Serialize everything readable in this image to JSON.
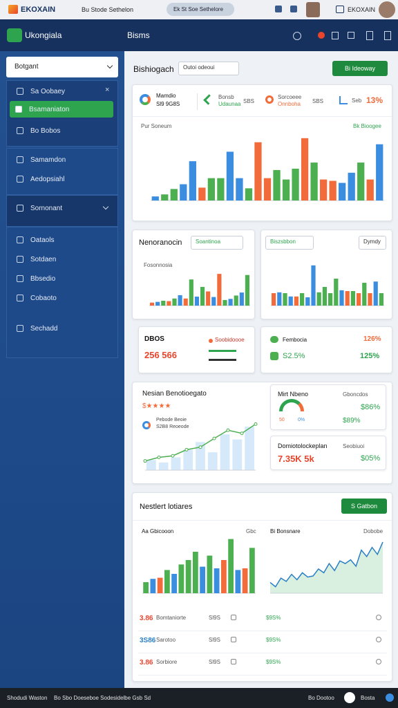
{
  "topbar": {
    "brand": "EKOXAIN",
    "menu": "Bu Stode Sethelon",
    "search": "Ek St Soe Sethelore"
  },
  "header": {
    "logo": "Ukongiala",
    "title": "Bisms"
  },
  "sidebar": {
    "select": "Botgant",
    "items": [
      "Sa Oobaey",
      "Bsamaniaton",
      "Bo Bobos",
      "Samamdon",
      "Aedopsiahl",
      "Sornonant",
      "Oataols",
      "Sotdaen",
      "Bbsedio",
      "Cobaoto",
      "Sechadd"
    ]
  },
  "toolbar": {
    "title": "Bishiogach",
    "dropdown": "Outoi odeoui",
    "button": "Bi Ideoway"
  },
  "overview": {
    "stats": [
      [
        "Mamdio",
        "Sl9 9G8S"
      ],
      [
        "Bonsb",
        "Udaunaa",
        "SBS"
      ],
      [
        "Sorcoeee",
        "Onnboha",
        "SBS"
      ],
      [
        "Seb",
        "13%"
      ]
    ],
    "chart": {
      "title": "Pur Soneum",
      "legend": "Bk Bioogee",
      "ylim": [
        0,
        100
      ],
      "values": [
        6,
        9,
        17,
        24,
        58,
        19,
        33,
        33,
        72,
        33,
        18,
        86,
        33,
        45,
        31,
        47,
        92,
        56,
        31,
        29,
        26,
        41,
        56,
        31,
        83
      ],
      "colors": [
        "#3b8de0",
        "#4caf50",
        "#4caf50",
        "#3b8de0",
        "#3b8de0",
        "#f26b3a",
        "#4caf50",
        "#4caf50",
        "#3b8de0",
        "#3b8de0",
        "#4caf50",
        "#f26b3a",
        "#f26b3a",
        "#4caf50",
        "#4caf50",
        "#4caf50",
        "#f26b3a",
        "#4caf50",
        "#f26b3a",
        "#f26b3a",
        "#3b8de0",
        "#3b8de0",
        "#4caf50",
        "#f26b3a",
        "#3b8de0"
      ]
    }
  },
  "panel_a": {
    "title": "Nenoranocin",
    "dropdown": "Soantinoa",
    "chart": {
      "title": "Fosonnosia",
      "ylim": [
        0,
        100
      ],
      "values": [
        8,
        10,
        13,
        12,
        19,
        28,
        19,
        70,
        24,
        50,
        38,
        23,
        85,
        15,
        18,
        27,
        35,
        82
      ],
      "colors": [
        "#f26b3a",
        "#3b8de0",
        "#4caf50",
        "#f26b3a",
        "#4caf50",
        "#3b8de0",
        "#f26b3a",
        "#4caf50",
        "#3b8de0",
        "#4caf50",
        "#f26b3a",
        "#3b8de0",
        "#f26b3a",
        "#4caf50",
        "#3b8de0",
        "#4caf50",
        "#3b8de0",
        "#4caf50"
      ]
    }
  },
  "panel_b": {
    "dropdown": "Biszsbbon",
    "dropdown2": "Dymdy",
    "chart": {
      "ylim": [
        0,
        100
      ],
      "values": [
        30,
        32,
        30,
        22,
        22,
        30,
        20,
        97,
        32,
        45,
        30,
        65,
        37,
        35,
        35,
        30,
        55,
        30,
        58,
        30
      ],
      "colors": [
        "#f26b3a",
        "#3b8de0",
        "#4caf50",
        "#3b8de0",
        "#f26b3a",
        "#4caf50",
        "#3b8de0",
        "#3b8de0",
        "#4caf50",
        "#4caf50",
        "#4caf50",
        "#4caf50",
        "#3b8de0",
        "#f26b3a",
        "#4caf50",
        "#f26b3a",
        "#4caf50",
        "#f26b3a",
        "#3b8de0",
        "#4caf50"
      ]
    }
  },
  "kpi_a": {
    "label": "DBOS",
    "value": "256 566",
    "legend": "Soobidoooe"
  },
  "kpi_b": {
    "label": "Fembocia",
    "value": "126%",
    "sub": "S2.5%",
    "sub_value": "125%"
  },
  "trend": {
    "title": "Nesian Benotioegato",
    "stars": "$★★★★",
    "legend": [
      "Pebode Beoie",
      "S2B8 Reoeode"
    ],
    "ylim": [
      0,
      100
    ],
    "line": [
      18,
      25,
      28,
      40,
      45,
      62,
      78,
      72,
      90
    ],
    "bars": [
      20,
      15,
      25,
      40,
      55,
      35,
      70,
      60,
      85
    ]
  },
  "gauge": {
    "title": "Mirt Nbeno",
    "note": "Gboncdos",
    "value": "$86%",
    "value2": "$89%",
    "low": "50",
    "high": "0%"
  },
  "summary": {
    "title": "Domiotolockeplan",
    "value": "7.35K 5k",
    "note": "Seobiuoi",
    "value2": "$05%"
  },
  "reports": {
    "title": "Nestlert lotiares",
    "button": "S Gatbon",
    "bar_chart": {
      "title": "Aa Gbicooon",
      "legend": "Gbc",
      "ylim": [
        0,
        100
      ],
      "values": [
        20,
        26,
        28,
        42,
        35,
        52,
        60,
        75,
        48,
        68,
        45,
        60,
        98,
        42,
        45,
        82
      ],
      "colors": [
        "#4caf50",
        "#3b8de0",
        "#f26b3a",
        "#4caf50",
        "#3b8de0",
        "#4caf50",
        "#4caf50",
        "#4caf50",
        "#3b8de0",
        "#4caf50",
        "#3b8de0",
        "#f26b3a",
        "#4caf50",
        "#3b8de0",
        "#f26b3a",
        "#4caf50"
      ]
    },
    "area_chart": {
      "title": "Bi Bonsnare",
      "legend": "Dobobe",
      "ylim": [
        0,
        100
      ],
      "values": [
        20,
        12,
        28,
        22,
        35,
        25,
        38,
        30,
        32,
        45,
        38,
        55,
        42,
        60,
        55,
        62,
        50,
        80,
        68,
        85,
        72,
        95
      ]
    },
    "rows": [
      [
        "3.86",
        "Bomtaniorte",
        "Sl9S",
        "$9S%"
      ],
      [
        "3S86",
        "Sarotoo",
        "Sl9S",
        "$9S%"
      ],
      [
        "3.86",
        "Sorbiore",
        "Sl9S",
        "$9S%"
      ]
    ]
  },
  "footer": {
    "left": "Shodudi Waston",
    "middle": "Bo Sbo Doeseboe Sodesidelbe Gsb Sd",
    "right": "Bo Dootoo",
    "end": "Bosta"
  }
}
